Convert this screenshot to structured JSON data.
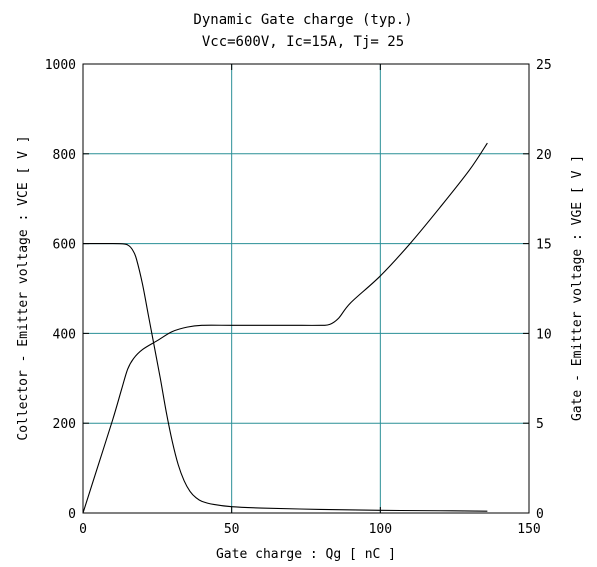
{
  "chart_data": {
    "type": "line",
    "title": "Dynamic Gate charge  (typ.)",
    "subtitle": "Vcc=600V, Ic=15A, Tj= 25",
    "xlabel": "Gate charge  :  Qg  [ nC ]",
    "ylabel": "Collector - Emitter voltage  :  VCE  [ V ]",
    "y2label": "Gate - Emitter voltage  :  VGE  [ V ]",
    "xlim": [
      0,
      150
    ],
    "ylim": [
      0,
      1000
    ],
    "y2lim": [
      0,
      25
    ],
    "xticks": [
      0,
      50,
      100,
      150
    ],
    "yticks": [
      0,
      200,
      400,
      600,
      800,
      1000
    ],
    "y2ticks": [
      0,
      5,
      10,
      15,
      20,
      25
    ],
    "grid": true,
    "colors": {
      "grid": "#2a8f96",
      "line": "#000000"
    },
    "series": [
      {
        "axis": "left",
        "x": [
          0,
          10,
          14,
          15,
          16,
          17,
          18,
          20,
          22,
          24,
          26,
          28,
          30,
          32,
          34,
          36,
          38,
          40,
          44,
          50,
          60,
          80,
          100,
          120,
          136
        ],
        "y": [
          600,
          600,
          599,
          597,
          592,
          582,
          565,
          510,
          440,
          370,
          300,
          225,
          160,
          108,
          72,
          48,
          34,
          26,
          19,
          14,
          11,
          8,
          6,
          5,
          4
        ]
      },
      {
        "axis": "right",
        "x": [
          0,
          5,
          10,
          13,
          15,
          17,
          20,
          25,
          30,
          35,
          40,
          50,
          60,
          70,
          80,
          83,
          86,
          90,
          100,
          110,
          120,
          130,
          136
        ],
        "y": [
          0,
          2.6,
          5.2,
          6.9,
          8.0,
          8.6,
          9.1,
          9.6,
          10.1,
          10.35,
          10.45,
          10.45,
          10.45,
          10.45,
          10.45,
          10.5,
          10.85,
          11.7,
          13.2,
          15.0,
          17.0,
          19.1,
          20.6
        ]
      }
    ]
  }
}
